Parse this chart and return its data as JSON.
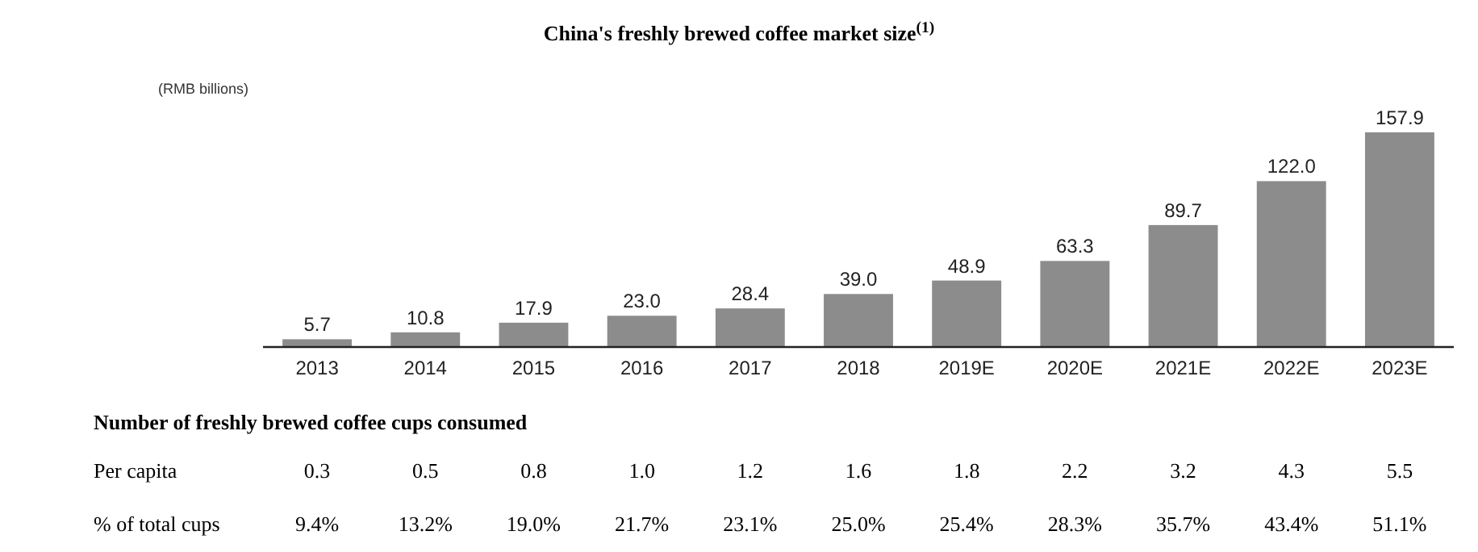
{
  "chart_data": {
    "type": "bar",
    "title": "China's freshly brewed coffee market size$^{(1)}$",
    "ylabel": "(RMB billions)",
    "categories": [
      "2013",
      "2014",
      "2015",
      "2016",
      "2017",
      "2018",
      "2019E",
      "2020E",
      "2021E",
      "2022E",
      "2023E"
    ],
    "values": [
      5.7,
      10.8,
      17.9,
      23.0,
      28.4,
      39.0,
      48.9,
      63.3,
      89.7,
      122.0,
      157.9
    ],
    "value_labels": [
      "5.7",
      "10.8",
      "17.9",
      "23.0",
      "28.4",
      "39.0",
      "48.9",
      "63.3",
      "89.7",
      "122.0",
      "157.9"
    ],
    "color": "#8c8c8c",
    "annotations": [
      "Number of freshly brewed coffee cups consumed",
      "Per capita",
      "0.3",
      "0.5",
      "0.8",
      "1.0",
      "1.2",
      "1.6",
      "1.8",
      "2.2",
      "3.2",
      "4.3",
      "5.5",
      "% of total cups",
      "9.4%",
      "13.2%",
      "19.0%",
      "21.7%",
      "23.1%",
      "25.0%",
      "25.4%",
      "28.3%",
      "35.7%",
      "43.4%",
      "51.1%"
    ]
  }
}
